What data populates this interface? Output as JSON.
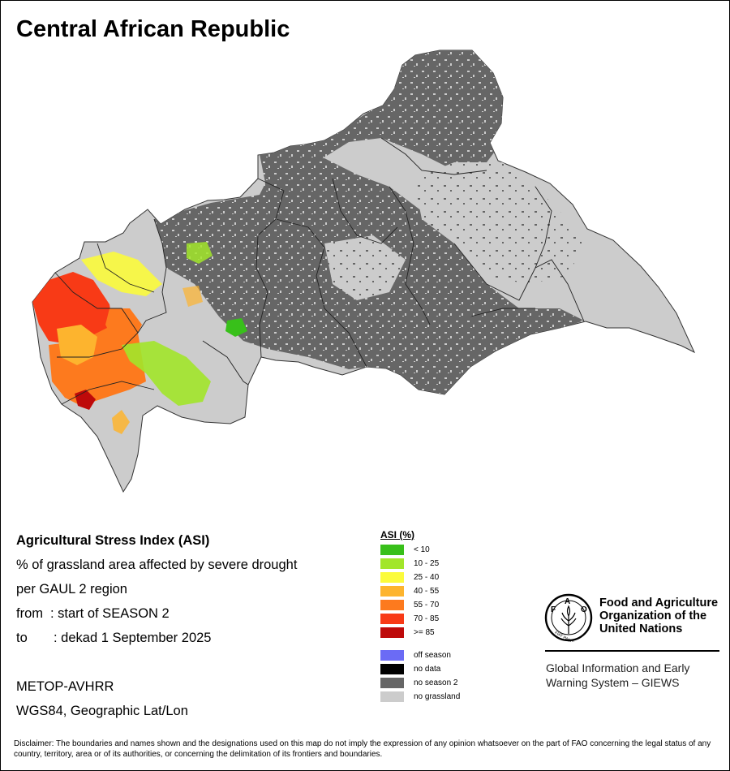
{
  "title": "Central African Republic",
  "info": {
    "heading": "Agricultural Stress Index (ASI)",
    "line1": "% of grassland area affected by severe drought",
    "line2": "per GAUL 2 region",
    "from_label": "from",
    "from_value": ": start of SEASON 2",
    "to_label": "to",
    "to_value": ": dekad 1 September 2025",
    "sensor": "METOP-AVHRR",
    "projection": "WGS84, Geographic Lat/Lon"
  },
  "legend": {
    "title": "ASI (%)",
    "classes": [
      {
        "label": "< 10",
        "color": "#38c01a"
      },
      {
        "label": "10 - 25",
        "color": "#a2e62a"
      },
      {
        "label": "25 - 40",
        "color": "#fbfb3c"
      },
      {
        "label": "40 - 55",
        "color": "#fdb42e"
      },
      {
        "label": "55 - 70",
        "color": "#fd7a1e"
      },
      {
        "label": "70 - 85",
        "color": "#f83a16"
      },
      {
        "label": ">= 85",
        "color": "#be0a0a"
      }
    ],
    "other": [
      {
        "label": "off season",
        "color": "#6b6bf5"
      },
      {
        "label": "no data",
        "color": "#000000"
      },
      {
        "label": "no season 2",
        "color": "#666666"
      },
      {
        "label": "no grassland",
        "color": "#cccccc"
      }
    ]
  },
  "organization": {
    "name_line1": "Food and Agriculture",
    "name_line2": "Organization of the",
    "name_line3": "United Nations",
    "system_line1": "Global Information and Early",
    "system_line2": "Warning System – GIEWS",
    "logo_text": "FAO",
    "logo_motto": "FIAT PANIS"
  },
  "disclaimer": "Disclaimer: The boundaries and names shown and the designations used on this map do not imply the expression of any opinion whatsoever on the part of FAO concerning the legal status of any country, territory, area or of its authorities, or concerning the delimitation of its frontiers and boundaries."
}
